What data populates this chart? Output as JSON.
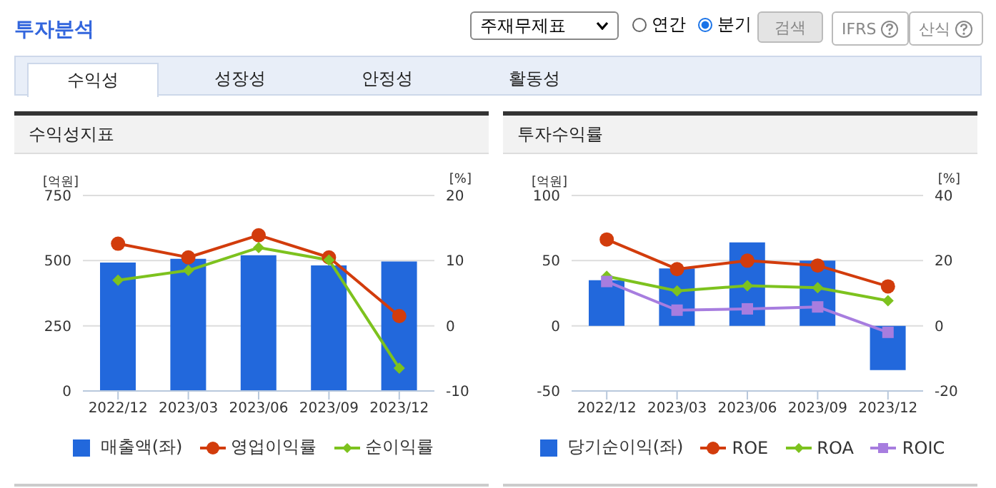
{
  "chart_data": [
    {
      "type": "bar",
      "title": "수익성지표",
      "ylabel": "[억원]",
      "y2label": "[%]",
      "categories": [
        "2022/12",
        "2023/03",
        "2023/06",
        "2023/09",
        "2023/12"
      ],
      "annotations": [
        "투자분석",
        "주재무제표",
        "연간",
        "분기",
        "검색",
        "IFRS",
        "산식",
        "수익성",
        "성장성",
        "안정성",
        "활동성"
      ],
      "ylim": [
        0,
        750
      ],
      "yticks": [
        0,
        250,
        500,
        750
      ],
      "y2lim": [
        -10,
        20
      ],
      "y2ticks": [
        -10,
        0,
        10,
        20
      ],
      "grid": "y",
      "legend": "bottom",
      "series": [
        {
          "name": "매출액(좌)",
          "color": "#2268dc",
          "values": [
            493,
            507,
            521,
            482,
            497
          ]
        },
        {
          "name": "영업이익률",
          "type": "line",
          "axis": "y2",
          "marker": "circle",
          "color": "#d23c0c",
          "values": [
            12.6,
            10.5,
            13.9,
            10.5,
            1.5
          ]
        },
        {
          "name": "순이익률",
          "type": "line",
          "axis": "y2",
          "marker": "diamond",
          "color": "#7dc21e",
          "values": [
            7.0,
            8.5,
            12.0,
            10.1,
            -6.5
          ]
        }
      ]
    },
    {
      "type": "bar",
      "title": "투자수익률",
      "ylabel": "[억원]",
      "y2label": "[%]",
      "categories": [
        "2022/12",
        "2023/03",
        "2023/06",
        "2023/09",
        "2023/12"
      ],
      "ylim": [
        -50,
        100
      ],
      "yticks": [
        -50,
        0,
        50,
        100
      ],
      "y2lim": [
        -20,
        40
      ],
      "y2ticks": [
        -20,
        0,
        20,
        40
      ],
      "grid": "y",
      "legend": "bottom",
      "series": [
        {
          "name": "당기순이익(좌)",
          "color": "#2268dc",
          "values": [
            35,
            44,
            64,
            50,
            -34
          ]
        },
        {
          "name": "ROE",
          "type": "line",
          "axis": "y2",
          "marker": "circle",
          "color": "#d23c0c",
          "values": [
            26.5,
            17.4,
            20.0,
            18.5,
            12.1
          ]
        },
        {
          "name": "ROA",
          "type": "line",
          "axis": "y2",
          "marker": "diamond",
          "color": "#7dc21e",
          "values": [
            15.2,
            10.7,
            12.3,
            11.7,
            7.7
          ]
        },
        {
          "name": "ROIC",
          "type": "line",
          "axis": "y2",
          "marker": "square",
          "color": "#a77ddf",
          "values": [
            13.6,
            4.8,
            5.2,
            5.8,
            -2.0
          ]
        }
      ]
    }
  ]
}
